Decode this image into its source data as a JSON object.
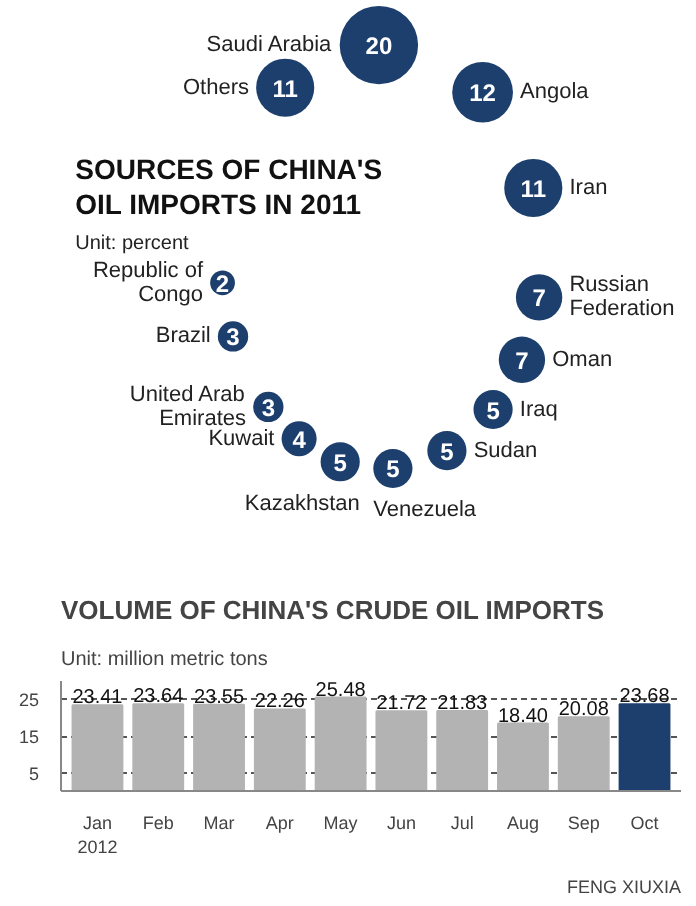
{
  "chart_data": [
    {
      "type": "other",
      "title": "SOURCES OF CHINA'S\nOIL IMPORTS IN 2011",
      "subtitle": "Unit: percent",
      "categories": [
        "Saudi Arabia",
        "Angola",
        "Iran",
        "Russian\nFederation",
        "Oman",
        "Iraq",
        "Sudan",
        "Venezuela",
        "Kazakhstan",
        "Kuwait",
        "United Arab\nEmirates",
        "Brazil",
        "Republic of\nCongo",
        "Others"
      ],
      "values": [
        20,
        12,
        11,
        7,
        7,
        5,
        5,
        5,
        5,
        4,
        3,
        3,
        2,
        11
      ],
      "color": "#1d3f6e",
      "data_labels": true
    },
    {
      "type": "bar",
      "title": "VOLUME OF CHINA'S CRUDE OIL IMPORTS",
      "subtitle": "Unit: million metric tons",
      "categories": [
        "Jan\n2012",
        "Feb",
        "Mar",
        "Apr",
        "May",
        "Jun",
        "Jul",
        "Aug",
        "Sep",
        "Oct"
      ],
      "values": [
        23.41,
        23.64,
        23.55,
        22.26,
        25.48,
        21.72,
        21.83,
        18.4,
        20.08,
        23.68
      ],
      "colors": [
        "#b3b3b3",
        "#b3b3b3",
        "#b3b3b3",
        "#b3b3b3",
        "#b3b3b3",
        "#b3b3b3",
        "#b3b3b3",
        "#b3b3b3",
        "#b3b3b3",
        "#1d3f6e"
      ],
      "value_labels": [
        "23.41",
        "23.64",
        "23.55",
        "22.26",
        "25.48",
        "21.72",
        "21.83",
        "18.40",
        "20.08",
        "23.68"
      ],
      "ylim": [
        0,
        30
      ],
      "yticks": [
        5,
        15,
        25
      ],
      "grid": "y",
      "annotations": [
        "FENG XIUXIA"
      ]
    }
  ]
}
